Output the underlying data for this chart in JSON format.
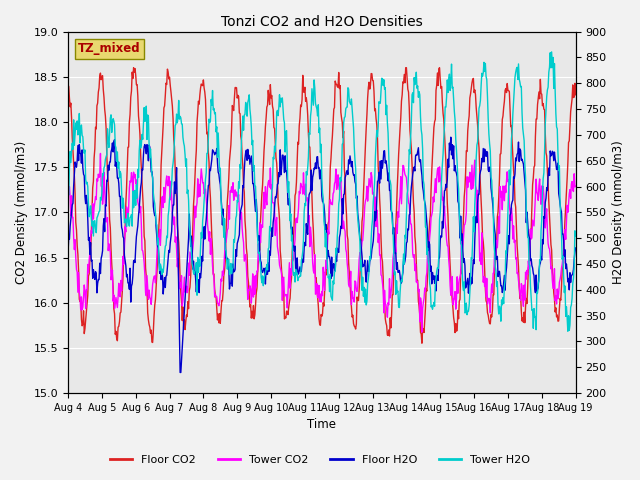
{
  "title": "Tonzi CO2 and H2O Densities",
  "xlabel": "Time",
  "ylabel_left": "CO2 Density (mmol/m3)",
  "ylabel_right": "H2O Density (mmol/m3)",
  "co2_ylim": [
    15.0,
    19.0
  ],
  "h2o_ylim": [
    200,
    900
  ],
  "co2_yticks": [
    15.0,
    15.5,
    16.0,
    16.5,
    17.0,
    17.5,
    18.0,
    18.5,
    19.0
  ],
  "h2o_yticks": [
    200,
    250,
    300,
    350,
    400,
    450,
    500,
    550,
    600,
    650,
    700,
    750,
    800,
    850,
    900
  ],
  "xtick_labels": [
    "Aug 4",
    "Aug 5",
    "Aug 6",
    "Aug 7",
    "Aug 8",
    "Aug 9",
    "Aug 10",
    "Aug 11",
    "Aug 12",
    "Aug 13",
    "Aug 14",
    "Aug 15",
    "Aug 16",
    "Aug 17",
    "Aug 18",
    "Aug 19"
  ],
  "annotation_text": "TZ_mixed",
  "annotation_color": "#aa0000",
  "annotation_bg": "#e8d870",
  "legend_entries": [
    "Floor CO2",
    "Tower CO2",
    "Floor H2O",
    "Tower H2O"
  ],
  "colors": {
    "floor_co2": "#dd2222",
    "tower_co2": "#ff00ff",
    "floor_h2o": "#0000cc",
    "tower_h2o": "#00cccc"
  },
  "linewidth": 1.0,
  "plot_bg": "#e8e8e8",
  "fig_bg": "#f2f2f2",
  "figsize": [
    6.4,
    4.8
  ],
  "dpi": 100
}
